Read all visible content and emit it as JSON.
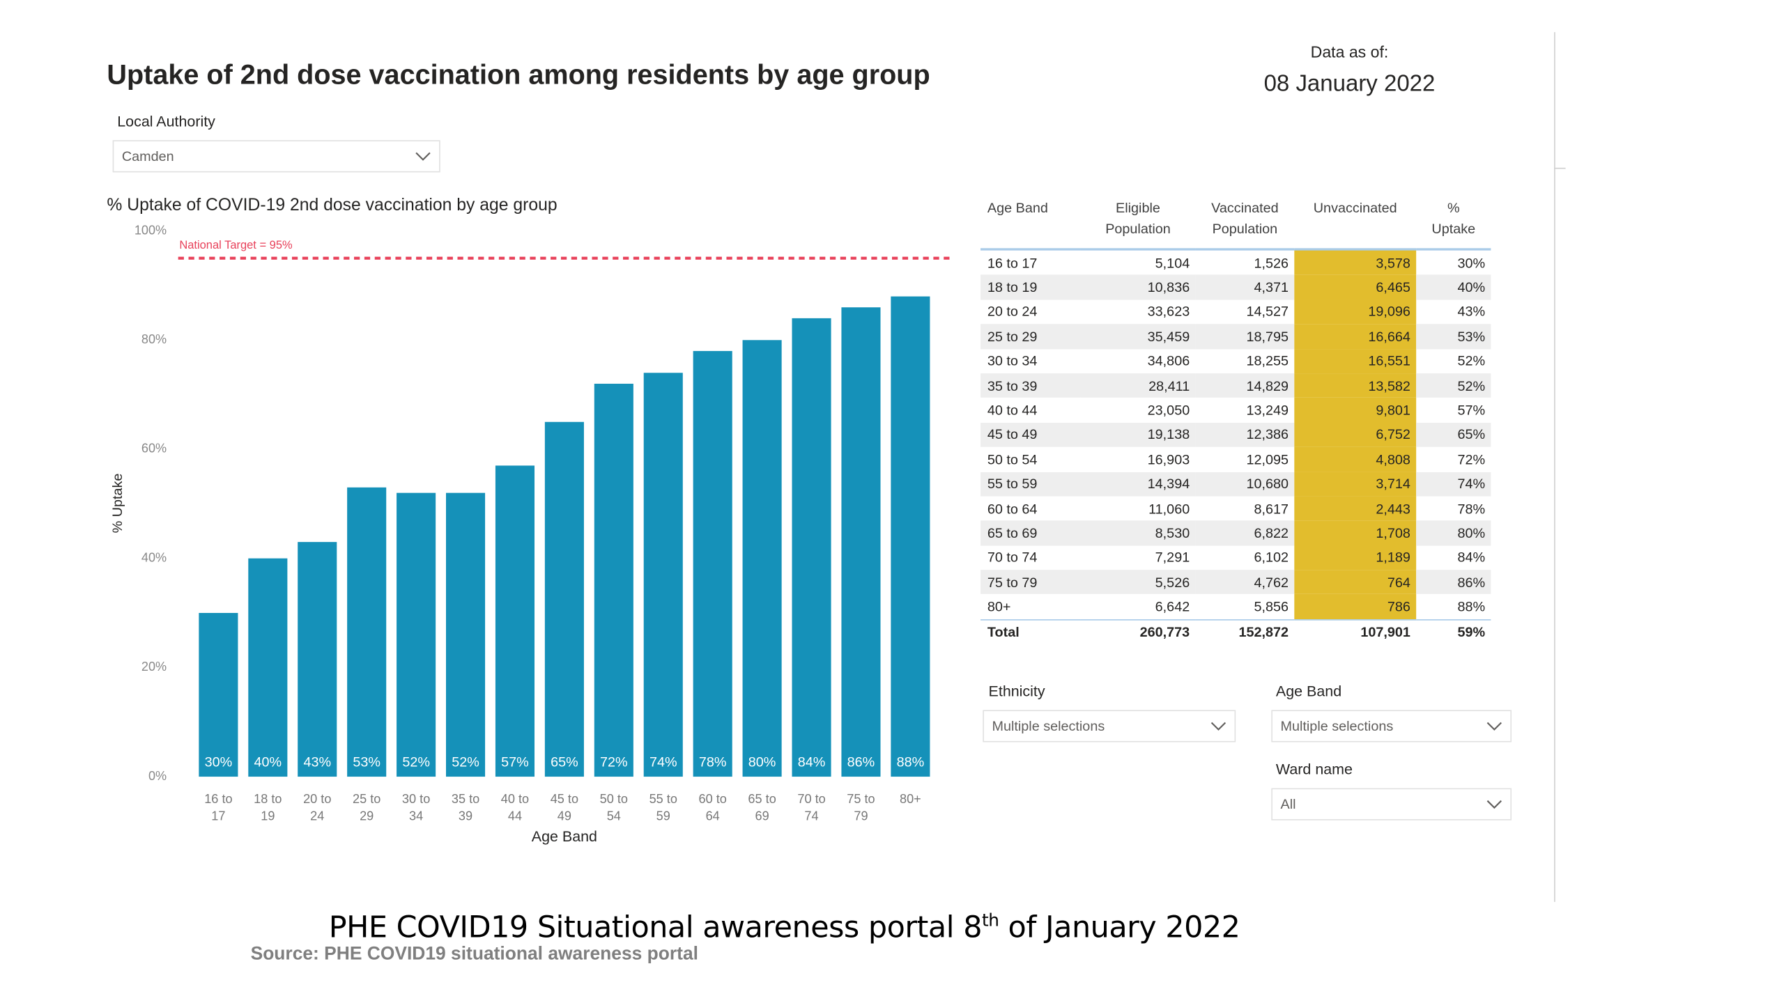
{
  "header": {
    "title": "Uptake of 2nd dose vaccination among residents by age group",
    "data_as_of_label": "Data as of:",
    "data_as_of": "08 January 2022"
  },
  "filters": {
    "local_authority": {
      "label": "Local Authority",
      "value": "Camden"
    },
    "ethnicity": {
      "label": "Ethnicity",
      "value": "Multiple selections"
    },
    "age_band": {
      "label": "Age Band",
      "value": "Multiple selections"
    },
    "ward_name": {
      "label": "Ward name",
      "value": "All"
    }
  },
  "chart_data": {
    "type": "bar",
    "title": "% Uptake of COVID-19 2nd dose vaccination by age group",
    "x_label": "Age Band",
    "y_label": "% Uptake",
    "categories": [
      "16 to 17",
      "18 to 19",
      "20 to 24",
      "25 to 29",
      "30 to 34",
      "35 to 39",
      "40 to 44",
      "45 to 49",
      "50 to 54",
      "55 to 59",
      "60 to 64",
      "65 to 69",
      "70 to 74",
      "75 to 79",
      "80+"
    ],
    "values": [
      30,
      40,
      43,
      53,
      52,
      52,
      57,
      65,
      72,
      74,
      78,
      80,
      84,
      86,
      88
    ],
    "value_labels": [
      "30%",
      "40%",
      "43%",
      "53%",
      "52%",
      "52%",
      "57%",
      "65%",
      "72%",
      "74%",
      "78%",
      "80%",
      "84%",
      "86%",
      "88%"
    ],
    "color": "#1591b9",
    "ylim": [
      0,
      100
    ],
    "yticks": [
      {
        "value": 0,
        "label": "0%"
      },
      {
        "value": 20,
        "label": "20%"
      },
      {
        "value": 40,
        "label": "40%"
      },
      {
        "value": 60,
        "label": "60%"
      },
      {
        "value": 80,
        "label": "80%"
      },
      {
        "value": 100,
        "label": "100%"
      }
    ],
    "target": 95,
    "target_label": "National Target = 95%",
    "target_color": "#e8415a",
    "grid": false
  },
  "table": {
    "columns": [
      "Age Band",
      "Eligible Population",
      "Vaccinated Population",
      "Unvaccinated",
      "% Uptake"
    ],
    "rows": [
      [
        "16 to 17",
        "5,104",
        "1,526",
        "3,578",
        "30%"
      ],
      [
        "18 to 19",
        "10,836",
        "4,371",
        "6,465",
        "40%"
      ],
      [
        "20 to 24",
        "33,623",
        "14,527",
        "19,096",
        "43%"
      ],
      [
        "25 to 29",
        "35,459",
        "18,795",
        "16,664",
        "53%"
      ],
      [
        "30 to 34",
        "34,806",
        "18,255",
        "16,551",
        "52%"
      ],
      [
        "35 to 39",
        "28,411",
        "14,829",
        "13,582",
        "52%"
      ],
      [
        "40 to 44",
        "23,050",
        "13,249",
        "9,801",
        "57%"
      ],
      [
        "45 to 49",
        "19,138",
        "12,386",
        "6,752",
        "65%"
      ],
      [
        "50 to 54",
        "16,903",
        "12,095",
        "4,808",
        "72%"
      ],
      [
        "55 to 59",
        "14,394",
        "10,680",
        "3,714",
        "74%"
      ],
      [
        "60 to 64",
        "11,060",
        "8,617",
        "2,443",
        "78%"
      ],
      [
        "65 to 69",
        "8,530",
        "6,822",
        "1,708",
        "80%"
      ],
      [
        "70 to 74",
        "7,291",
        "6,102",
        "1,189",
        "84%"
      ],
      [
        "75 to 79",
        "5,526",
        "4,762",
        "764",
        "86%"
      ],
      [
        "80+",
        "6,642",
        "5,856",
        "786",
        "88%"
      ]
    ],
    "total": [
      "Total",
      "260,773",
      "152,872",
      "107,901",
      "59%"
    ]
  },
  "footer": {
    "caption_start": "PHE COVID19 Situational awareness portal 8",
    "caption_sup": "th",
    "caption_end": " of January 2022",
    "source": "Source: PHE COVID19 situational awareness portal"
  }
}
